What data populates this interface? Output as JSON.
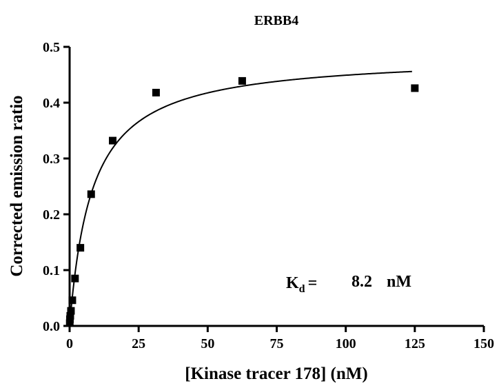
{
  "chart_data": {
    "type": "scatter",
    "title": "ERBB4",
    "xlabel": "[Kinase tracer 178] (nM)",
    "ylabel": "Corrected emission ratio",
    "xlim": [
      0,
      150
    ],
    "ylim": [
      0,
      0.5
    ],
    "x_ticks": [
      "0",
      "25",
      "50",
      "75",
      "100",
      "125",
      "150"
    ],
    "y_ticks": [
      "0.0",
      "0.1",
      "0.2",
      "0.3",
      "0.4",
      "0.5"
    ],
    "grid": false,
    "legend": "none",
    "marker": "filled square",
    "series": [
      {
        "x": [
          0.06,
          0.12,
          0.24,
          0.49,
          0.98,
          1.95,
          3.9,
          7.8,
          15.6,
          31.3,
          62.5,
          125
        ],
        "y": [
          0.005,
          0.012,
          0.018,
          0.027,
          0.046,
          0.085,
          0.14,
          0.236,
          0.332,
          0.418,
          0.439,
          0.426
        ]
      }
    ],
    "fit": {
      "model": "one-site binding",
      "bmax": 0.486,
      "kd": 8.2,
      "x_range": [
        0,
        124
      ]
    },
    "annotation": {
      "symbol": "K",
      "subscript": "d",
      "eq": "=",
      "value": "8.2",
      "unit": "nM"
    }
  }
}
